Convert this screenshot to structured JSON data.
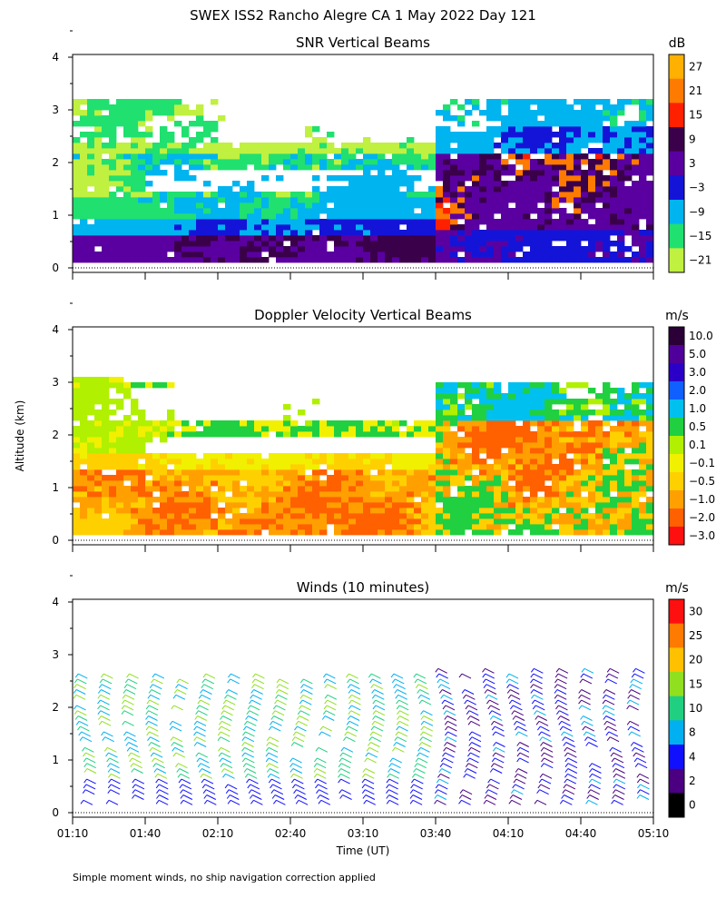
{
  "title": "SWEX ISS2 Rancho Alegre CA   1 May 2022 Day 121",
  "footnote": "Simple moment winds, no ship navigation correction applied",
  "ylabel": "Altitude (km)",
  "xlabel": "Time (UT)",
  "chart_data": [
    {
      "type": "heatmap",
      "title": "SNR Vertical Beams",
      "units": "dB",
      "x_range": [
        "01:10",
        "05:10"
      ],
      "ylim": [
        0,
        4
      ],
      "y_ticks": [
        "0",
        "1",
        "2",
        "3",
        "4"
      ],
      "colorbar_labels": [
        "27",
        "21",
        "15",
        "9",
        "3",
        "−3",
        "−9",
        "−15",
        "−21"
      ],
      "colorbar_colors": [
        "#ffb000",
        "#ff7a00",
        "#ff2000",
        "#3a004a",
        "#5a00a0",
        "#1414d8",
        "#00b4f0",
        "#20e070",
        "#c0f040"
      ]
    },
    {
      "type": "heatmap",
      "title": "Doppler Velocity Vertical Beams",
      "units": "m/s",
      "x_range": [
        "01:10",
        "05:10"
      ],
      "ylim": [
        0,
        4
      ],
      "y_ticks": [
        "0",
        "1",
        "2",
        "3",
        "4"
      ],
      "colorbar_labels": [
        "10.0",
        "5.0",
        "3.0",
        "2.0",
        "1.0",
        "0.5",
        "0.1",
        "−0.1",
        "−0.5",
        "−1.0",
        "−2.0",
        "−3.0"
      ],
      "colorbar_colors": [
        "#2a0036",
        "#50009a",
        "#2a00c8",
        "#1060ff",
        "#00c0f0",
        "#20d040",
        "#b0f000",
        "#f0f000",
        "#ffd000",
        "#ffa000",
        "#ff6000",
        "#ff1010"
      ]
    },
    {
      "type": "wind_barbs",
      "title": "Winds (10 minutes)",
      "units": "m/s",
      "x_ticks": [
        "01:10",
        "01:40",
        "02:10",
        "02:40",
        "03:10",
        "03:40",
        "04:10",
        "04:40",
        "05:10"
      ],
      "ylim": [
        0,
        4
      ],
      "y_ticks": [
        "0",
        "1",
        "2",
        "3",
        "4"
      ],
      "colorbar_labels": [
        "30",
        "25",
        "20",
        "15",
        "10",
        "8",
        "4",
        "2",
        "0"
      ],
      "colorbar_colors": [
        "#ff1010",
        "#ff7a00",
        "#ffc000",
        "#90e020",
        "#20d080",
        "#00b0f0",
        "#1010ff",
        "#4a0080",
        "#000000"
      ]
    }
  ]
}
